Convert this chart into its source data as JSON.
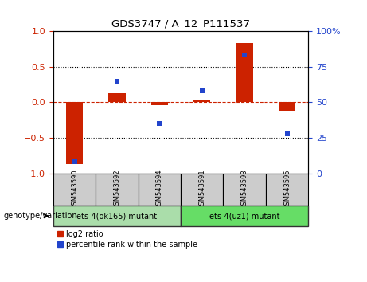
{
  "title": "GDS3747 / A_12_P111537",
  "samples": [
    "GSM543590",
    "GSM543592",
    "GSM543594",
    "GSM543591",
    "GSM543593",
    "GSM543595"
  ],
  "log2_ratio": [
    -0.87,
    0.13,
    -0.04,
    0.04,
    0.83,
    -0.12
  ],
  "percentile_rank": [
    8,
    65,
    35,
    58,
    83,
    28
  ],
  "group1_label": "ets-4(ok165) mutant",
  "group2_label": "ets-4(uz1) mutant",
  "group1_color": "#aaddaa",
  "group2_color": "#66dd66",
  "bar_color_red": "#cc2200",
  "dot_color_blue": "#2244cc",
  "ylim_left": [
    -1.0,
    1.0
  ],
  "ylim_right": [
    0,
    100
  ],
  "yticks_left": [
    -1,
    -0.5,
    0,
    0.5,
    1
  ],
  "yticks_right": [
    0,
    25,
    50,
    75,
    100
  ],
  "dotted_lines": [
    -0.5,
    0.5
  ],
  "plot_bg": "#ffffff",
  "outer_bg": "#ffffff",
  "legend_red_label": "log2 ratio",
  "legend_blue_label": "percentile rank within the sample",
  "sample_box_color": "#cccccc",
  "bar_width": 0.4,
  "dot_marker_size": 5
}
